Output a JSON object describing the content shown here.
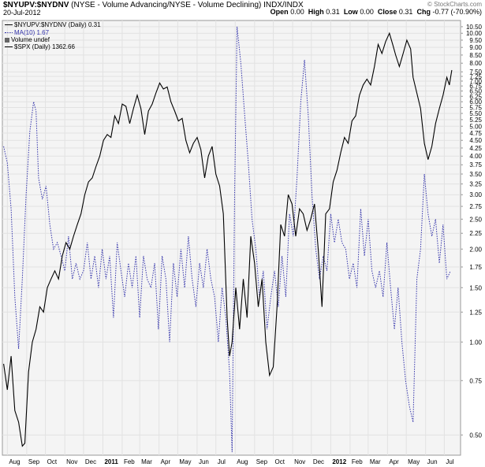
{
  "header": {
    "symbol": "$NYUPV:$NYDNV",
    "description": "(NYSE - Volume Advancing/NYSE - Volume Declining) INDX/INDX",
    "date": "20-Jul-2012",
    "watermark": "© StockCharts.com",
    "quote": {
      "open_label": "Open",
      "open": "0.00",
      "high_label": "High",
      "high": "0.31",
      "low_label": "Low",
      "low": "0.00",
      "close_label": "Close",
      "close": "0.31",
      "chg_label": "Chg",
      "chg": "-0.77 (-70.90%)"
    }
  },
  "legend": {
    "main": "$NYUPV:$NYDNV (Daily) 0.31",
    "ma": "MA(10) 1.67",
    "volume": "Volume undef",
    "spx": "$SPX (Daily) 1362.66"
  },
  "colors": {
    "ma": "#3333aa",
    "spx": "#000000",
    "grid": "#e2e2e2",
    "plot_bg": "#f4f4f4"
  },
  "chart_data": {
    "type": "line",
    "y_scale": "log",
    "ylim": [
      0.43,
      11.0
    ],
    "y_ticks": [
      "0.50",
      "0.75",
      "1.00",
      "1.25",
      "1.50",
      "1.75",
      "2.00",
      "2.25",
      "2.50",
      "2.75",
      "3.00",
      "3.25",
      "3.50",
      "3.75",
      "4.00",
      "4.25",
      "4.50",
      "4.75",
      "5.00",
      "5.25",
      "5.50",
      "5.75",
      "6.00",
      "6.25",
      "6.50",
      "6.75",
      "7.00",
      "7.25",
      "7.50",
      "8.00",
      "8.50",
      "9.00",
      "9.50",
      "10.00",
      "10.50"
    ],
    "x_ticks": [
      {
        "label": "Aug",
        "d": 0
      },
      {
        "label": "Sep",
        "d": 31
      },
      {
        "label": "Oct",
        "d": 61
      },
      {
        "label": "Nov",
        "d": 92
      },
      {
        "label": "Dec",
        "d": 122
      },
      {
        "label": "2011",
        "d": 153,
        "year": true
      },
      {
        "label": "Feb",
        "d": 184
      },
      {
        "label": "Mar",
        "d": 212
      },
      {
        "label": "Apr",
        "d": 243
      },
      {
        "label": "May",
        "d": 273
      },
      {
        "label": "Jun",
        "d": 304
      },
      {
        "label": "Jul",
        "d": 334
      },
      {
        "label": "Aug",
        "d": 365
      },
      {
        "label": "Sep",
        "d": 396
      },
      {
        "label": "Oct",
        "d": 426
      },
      {
        "label": "Nov",
        "d": 457
      },
      {
        "label": "Dec",
        "d": 487
      },
      {
        "label": "2012",
        "d": 518,
        "year": true
      },
      {
        "label": "Feb",
        "d": 549
      },
      {
        "label": "Mar",
        "d": 578
      },
      {
        "label": "Apr",
        "d": 609
      },
      {
        "label": "May",
        "d": 639
      },
      {
        "label": "Jun",
        "d": 670
      },
      {
        "label": "Jul",
        "d": 700
      }
    ],
    "x_range": [
      -8,
      726
    ],
    "series": [
      {
        "name": "MA(10)",
        "style": "dotted",
        "points": [
          [
            -6,
            4.3
          ],
          [
            0,
            3.8
          ],
          [
            6,
            2.7
          ],
          [
            12,
            1.4
          ],
          [
            18,
            0.95
          ],
          [
            24,
            1.6
          ],
          [
            30,
            3.0
          ],
          [
            36,
            4.8
          ],
          [
            42,
            6.0
          ],
          [
            46,
            5.6
          ],
          [
            50,
            3.4
          ],
          [
            56,
            2.9
          ],
          [
            62,
            3.2
          ],
          [
            68,
            2.4
          ],
          [
            74,
            2.0
          ],
          [
            80,
            2.1
          ],
          [
            86,
            1.9
          ],
          [
            92,
            1.7
          ],
          [
            98,
            2.2
          ],
          [
            104,
            1.6
          ],
          [
            110,
            1.8
          ],
          [
            116,
            1.6
          ],
          [
            122,
            1.7
          ],
          [
            128,
            2.1
          ],
          [
            134,
            1.6
          ],
          [
            140,
            1.9
          ],
          [
            146,
            1.5
          ],
          [
            152,
            2.0
          ],
          [
            158,
            1.6
          ],
          [
            164,
            1.9
          ],
          [
            170,
            1.2
          ],
          [
            176,
            2.1
          ],
          [
            182,
            1.7
          ],
          [
            188,
            1.4
          ],
          [
            194,
            1.8
          ],
          [
            200,
            1.5
          ],
          [
            206,
            1.9
          ],
          [
            212,
            1.2
          ],
          [
            218,
            1.9
          ],
          [
            224,
            1.6
          ],
          [
            230,
            1.5
          ],
          [
            236,
            1.8
          ],
          [
            242,
            1.1
          ],
          [
            248,
            1.9
          ],
          [
            254,
            1.6
          ],
          [
            260,
            1.0
          ],
          [
            266,
            1.8
          ],
          [
            272,
            1.4
          ],
          [
            278,
            2.0
          ],
          [
            284,
            1.5
          ],
          [
            290,
            2.2
          ],
          [
            296,
            1.6
          ],
          [
            302,
            1.3
          ],
          [
            308,
            1.8
          ],
          [
            314,
            1.5
          ],
          [
            320,
            2.0
          ],
          [
            326,
            1.6
          ],
          [
            332,
            1.4
          ],
          [
            338,
            1.0
          ],
          [
            344,
            1.5
          ],
          [
            350,
            1.2
          ],
          [
            356,
            0.8
          ],
          [
            360,
            0.44
          ],
          [
            364,
            3.0
          ],
          [
            368,
            10.5
          ],
          [
            374,
            8.0
          ],
          [
            380,
            5.5
          ],
          [
            386,
            3.8
          ],
          [
            392,
            2.5
          ],
          [
            398,
            2.0
          ],
          [
            404,
            1.4
          ],
          [
            410,
            1.7
          ],
          [
            416,
            1.1
          ],
          [
            422,
            1.4
          ],
          [
            428,
            1.7
          ],
          [
            434,
            1.3
          ],
          [
            440,
            1.9
          ],
          [
            446,
            1.4
          ],
          [
            452,
            2.6
          ],
          [
            458,
            2.2
          ],
          [
            464,
            3.4
          ],
          [
            470,
            6.0
          ],
          [
            476,
            8.2
          ],
          [
            482,
            5.4
          ],
          [
            488,
            3.0
          ],
          [
            494,
            2.0
          ],
          [
            500,
            1.6
          ],
          [
            506,
            1.9
          ],
          [
            512,
            1.7
          ],
          [
            518,
            2.6
          ],
          [
            524,
            2.1
          ],
          [
            530,
            2.5
          ],
          [
            536,
            2.1
          ],
          [
            542,
            2.0
          ],
          [
            548,
            1.6
          ],
          [
            554,
            1.8
          ],
          [
            560,
            1.5
          ],
          [
            566,
            2.7
          ],
          [
            572,
            1.9
          ],
          [
            578,
            2.5
          ],
          [
            584,
            1.7
          ],
          [
            590,
            1.5
          ],
          [
            596,
            1.7
          ],
          [
            602,
            1.4
          ],
          [
            608,
            2.1
          ],
          [
            614,
            1.5
          ],
          [
            620,
            1.1
          ],
          [
            626,
            1.5
          ],
          [
            632,
            1.0
          ],
          [
            638,
            0.75
          ],
          [
            644,
            0.62
          ],
          [
            650,
            0.55
          ],
          [
            656,
            1.6
          ],
          [
            662,
            2.0
          ],
          [
            668,
            3.5
          ],
          [
            674,
            2.6
          ],
          [
            680,
            2.2
          ],
          [
            686,
            2.5
          ],
          [
            692,
            1.8
          ],
          [
            698,
            2.4
          ],
          [
            704,
            1.6
          ],
          [
            710,
            1.7
          ]
        ]
      },
      {
        "name": "$SPX (Daily)",
        "style": "solid",
        "points": [
          [
            -6,
            0.85
          ],
          [
            0,
            0.7
          ],
          [
            6,
            0.9
          ],
          [
            12,
            0.6
          ],
          [
            18,
            0.55
          ],
          [
            24,
            0.46
          ],
          [
            28,
            0.47
          ],
          [
            34,
            0.8
          ],
          [
            40,
            1.0
          ],
          [
            46,
            1.1
          ],
          [
            52,
            1.3
          ],
          [
            58,
            1.25
          ],
          [
            64,
            1.5
          ],
          [
            70,
            1.6
          ],
          [
            76,
            1.7
          ],
          [
            82,
            1.6
          ],
          [
            88,
            1.9
          ],
          [
            94,
            2.1
          ],
          [
            100,
            2.0
          ],
          [
            106,
            2.2
          ],
          [
            112,
            2.4
          ],
          [
            118,
            2.6
          ],
          [
            124,
            3.0
          ],
          [
            130,
            3.3
          ],
          [
            136,
            3.4
          ],
          [
            142,
            3.7
          ],
          [
            148,
            4.0
          ],
          [
            154,
            4.5
          ],
          [
            160,
            4.7
          ],
          [
            166,
            4.6
          ],
          [
            172,
            5.4
          ],
          [
            178,
            5.1
          ],
          [
            184,
            5.9
          ],
          [
            190,
            5.8
          ],
          [
            196,
            5.1
          ],
          [
            202,
            5.7
          ],
          [
            208,
            6.3
          ],
          [
            214,
            5.7
          ],
          [
            220,
            4.7
          ],
          [
            226,
            5.6
          ],
          [
            232,
            5.9
          ],
          [
            238,
            6.4
          ],
          [
            244,
            6.9
          ],
          [
            250,
            6.6
          ],
          [
            256,
            6.7
          ],
          [
            262,
            6.0
          ],
          [
            268,
            5.6
          ],
          [
            274,
            5.2
          ],
          [
            280,
            5.3
          ],
          [
            286,
            4.5
          ],
          [
            292,
            4.1
          ],
          [
            298,
            4.4
          ],
          [
            304,
            4.6
          ],
          [
            310,
            4.2
          ],
          [
            316,
            3.4
          ],
          [
            322,
            4.0
          ],
          [
            328,
            4.3
          ],
          [
            334,
            3.5
          ],
          [
            340,
            3.2
          ],
          [
            346,
            2.6
          ],
          [
            352,
            1.2
          ],
          [
            356,
            0.9
          ],
          [
            360,
            1.0
          ],
          [
            366,
            1.5
          ],
          [
            372,
            1.1
          ],
          [
            378,
            1.6
          ],
          [
            384,
            1.2
          ],
          [
            390,
            2.2
          ],
          [
            396,
            1.8
          ],
          [
            402,
            1.3
          ],
          [
            408,
            1.6
          ],
          [
            414,
            1.0
          ],
          [
            420,
            0.78
          ],
          [
            426,
            0.83
          ],
          [
            432,
            1.3
          ],
          [
            438,
            2.4
          ],
          [
            444,
            2.2
          ],
          [
            450,
            3.0
          ],
          [
            456,
            2.8
          ],
          [
            462,
            2.2
          ],
          [
            468,
            2.7
          ],
          [
            474,
            2.6
          ],
          [
            480,
            2.3
          ],
          [
            486,
            2.5
          ],
          [
            492,
            2.8
          ],
          [
            498,
            2.0
          ],
          [
            504,
            1.3
          ],
          [
            510,
            2.6
          ],
          [
            516,
            2.7
          ],
          [
            522,
            3.3
          ],
          [
            528,
            3.6
          ],
          [
            534,
            4.1
          ],
          [
            540,
            4.6
          ],
          [
            546,
            4.4
          ],
          [
            552,
            5.2
          ],
          [
            558,
            5.4
          ],
          [
            564,
            6.3
          ],
          [
            570,
            6.8
          ],
          [
            576,
            7.1
          ],
          [
            582,
            6.8
          ],
          [
            588,
            7.8
          ],
          [
            594,
            9.2
          ],
          [
            600,
            8.6
          ],
          [
            606,
            9.4
          ],
          [
            612,
            10.0
          ],
          [
            618,
            9.1
          ],
          [
            622,
            8.5
          ],
          [
            628,
            7.8
          ],
          [
            634,
            8.6
          ],
          [
            640,
            9.5
          ],
          [
            646,
            8.9
          ],
          [
            650,
            7.2
          ],
          [
            656,
            6.4
          ],
          [
            662,
            5.7
          ],
          [
            668,
            4.4
          ],
          [
            674,
            3.9
          ],
          [
            680,
            4.3
          ],
          [
            686,
            5.1
          ],
          [
            692,
            5.7
          ],
          [
            698,
            6.3
          ],
          [
            704,
            7.2
          ],
          [
            708,
            6.8
          ],
          [
            712,
            7.6
          ]
        ]
      }
    ]
  }
}
